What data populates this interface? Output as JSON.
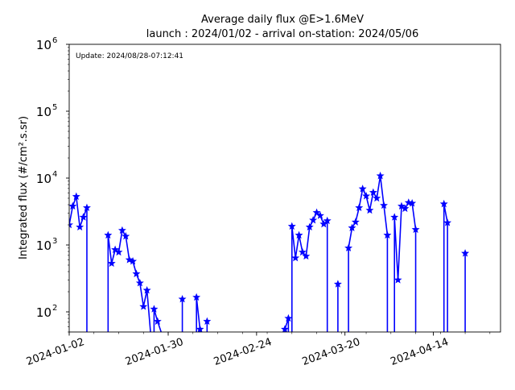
{
  "chart_data": {
    "type": "line",
    "title_line1": "Average daily flux @E>1.6MeV",
    "title_line2": "launch : 2024/01/02 - arrival on-station: 2024/05/06",
    "update_text": "Update: 2024/08/28-07:12:41",
    "ylabel": "Integrated flux (#/cm².s.sr)",
    "xlabel": "",
    "y_scale": "log",
    "ylim": [
      50,
      1000000
    ],
    "xlim": [
      "2024-01-02",
      "2024-05-03"
    ],
    "y_ticks": [
      {
        "value": 100,
        "base": "10",
        "exp": "2"
      },
      {
        "value": 1000,
        "base": "10",
        "exp": "3"
      },
      {
        "value": 10000,
        "base": "10",
        "exp": "4"
      },
      {
        "value": 100000,
        "base": "10",
        "exp": "5"
      },
      {
        "value": 1000000,
        "base": "10",
        "exp": "6"
      }
    ],
    "x_ticks": [
      "2024-01-02",
      "2024-01-30",
      "2024-02-24",
      "2024-03-20",
      "2024-04-14"
    ],
    "grid": false,
    "line_color": "#0000ff",
    "marker": "star",
    "segments": [
      [
        {
          "x": "2024-01-02",
          "y": 2000
        },
        {
          "x": "2024-01-03",
          "y": 3800
        },
        {
          "x": "2024-01-04",
          "y": 5300
        },
        {
          "x": "2024-01-05",
          "y": 1850
        },
        {
          "x": "2024-01-06",
          "y": 2600
        },
        {
          "x": "2024-01-07",
          "y": 3600
        },
        {
          "x": "2024-01-07",
          "y": 50
        }
      ],
      [
        {
          "x": "2024-01-13",
          "y": 50
        },
        {
          "x": "2024-01-13",
          "y": 1400
        },
        {
          "x": "2024-01-14",
          "y": 530
        },
        {
          "x": "2024-01-15",
          "y": 850
        },
        {
          "x": "2024-01-16",
          "y": 780
        },
        {
          "x": "2024-01-17",
          "y": 1650
        },
        {
          "x": "2024-01-18",
          "y": 1350
        },
        {
          "x": "2024-01-19",
          "y": 600
        },
        {
          "x": "2024-01-20",
          "y": 570
        },
        {
          "x": "2024-01-21",
          "y": 370
        },
        {
          "x": "2024-01-22",
          "y": 270
        },
        {
          "x": "2024-01-23",
          "y": 120
        },
        {
          "x": "2024-01-24",
          "y": 210
        },
        {
          "x": "2024-01-25",
          "y": 50
        }
      ],
      [
        {
          "x": "2024-01-26",
          "y": 50
        },
        {
          "x": "2024-01-26",
          "y": 110
        },
        {
          "x": "2024-01-27",
          "y": 72
        },
        {
          "x": "2024-01-28",
          "y": 50
        }
      ],
      [
        {
          "x": "2024-02-03",
          "y": 50
        },
        {
          "x": "2024-02-03",
          "y": 155
        },
        {
          "x": "2024-02-03",
          "y": 50
        }
      ],
      [
        {
          "x": "2024-02-07",
          "y": 50
        },
        {
          "x": "2024-02-07",
          "y": 165
        },
        {
          "x": "2024-02-08",
          "y": 55
        },
        {
          "x": "2024-02-08",
          "y": 50
        }
      ],
      [
        {
          "x": "2024-02-10",
          "y": 50
        },
        {
          "x": "2024-02-10",
          "y": 72
        },
        {
          "x": "2024-02-10",
          "y": 50
        }
      ],
      [
        {
          "x": "2024-03-03",
          "y": 50
        },
        {
          "x": "2024-03-03",
          "y": 55
        },
        {
          "x": "2024-03-04",
          "y": 80
        },
        {
          "x": "2024-03-04",
          "y": 50
        }
      ],
      [
        {
          "x": "2024-03-05",
          "y": 50
        },
        {
          "x": "2024-03-05",
          "y": 1900
        },
        {
          "x": "2024-03-06",
          "y": 640
        },
        {
          "x": "2024-03-07",
          "y": 1400
        },
        {
          "x": "2024-03-08",
          "y": 780
        },
        {
          "x": "2024-03-09",
          "y": 680
        },
        {
          "x": "2024-03-10",
          "y": 1850
        },
        {
          "x": "2024-03-11",
          "y": 2350
        },
        {
          "x": "2024-03-12",
          "y": 3050
        },
        {
          "x": "2024-03-13",
          "y": 2750
        },
        {
          "x": "2024-03-14",
          "y": 2050
        },
        {
          "x": "2024-03-15",
          "y": 2300
        },
        {
          "x": "2024-03-15",
          "y": 50
        }
      ],
      [
        {
          "x": "2024-03-18",
          "y": 50
        },
        {
          "x": "2024-03-18",
          "y": 260
        },
        {
          "x": "2024-03-18",
          "y": 50
        }
      ],
      [
        {
          "x": "2024-03-21",
          "y": 50
        },
        {
          "x": "2024-03-21",
          "y": 900
        },
        {
          "x": "2024-03-22",
          "y": 1800
        },
        {
          "x": "2024-03-23",
          "y": 2200
        },
        {
          "x": "2024-03-24",
          "y": 3600
        },
        {
          "x": "2024-03-25",
          "y": 6900
        },
        {
          "x": "2024-03-26",
          "y": 5400
        },
        {
          "x": "2024-03-27",
          "y": 3300
        },
        {
          "x": "2024-03-28",
          "y": 6100
        },
        {
          "x": "2024-03-29",
          "y": 5000
        },
        {
          "x": "2024-03-30",
          "y": 10800
        },
        {
          "x": "2024-03-31",
          "y": 3900
        },
        {
          "x": "2024-04-01",
          "y": 1400
        },
        {
          "x": "2024-04-01",
          "y": 50
        }
      ],
      [
        {
          "x": "2024-04-03",
          "y": 50
        },
        {
          "x": "2024-04-03",
          "y": 2600
        },
        {
          "x": "2024-04-04",
          "y": 300
        },
        {
          "x": "2024-04-05",
          "y": 3800
        },
        {
          "x": "2024-04-06",
          "y": 3500
        },
        {
          "x": "2024-04-07",
          "y": 4300
        },
        {
          "x": "2024-04-08",
          "y": 4200
        },
        {
          "x": "2024-04-09",
          "y": 1700
        },
        {
          "x": "2024-04-09",
          "y": 50
        }
      ],
      [
        {
          "x": "2024-04-17",
          "y": 50
        },
        {
          "x": "2024-04-17",
          "y": 4100
        },
        {
          "x": "2024-04-18",
          "y": 2150
        },
        {
          "x": "2024-04-18",
          "y": 50
        }
      ],
      [
        {
          "x": "2024-04-23",
          "y": 50
        },
        {
          "x": "2024-04-23",
          "y": 750
        },
        {
          "x": "2024-04-23",
          "y": 50
        }
      ]
    ]
  }
}
